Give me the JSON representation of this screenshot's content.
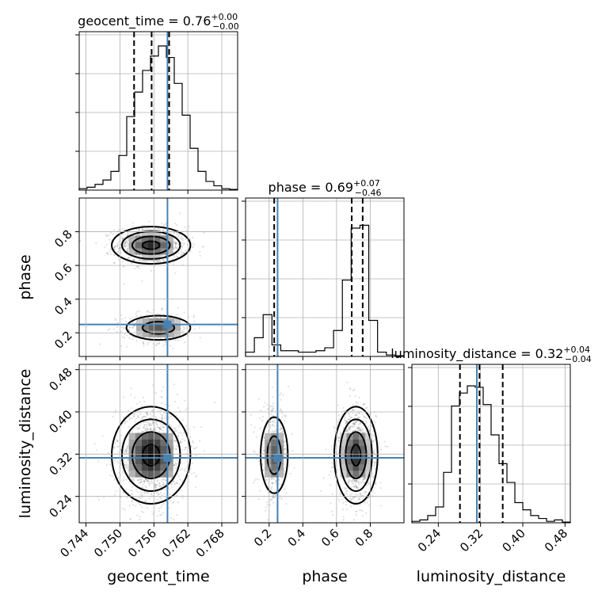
{
  "chart_data": {
    "type": "corner",
    "parameters": [
      {
        "key": "geocent_time",
        "label": "geocent_time",
        "title": {
          "prefix": "geocent_time = ",
          "value": "0.76",
          "sup": "+0.00",
          "sub": "−0.00"
        },
        "range": [
          0.7428,
          0.7708
        ],
        "ticks": [
          0.744,
          0.75,
          0.756,
          0.762,
          0.768
        ],
        "tick_labels": [
          "0.744",
          "0.750",
          "0.756",
          "0.762",
          "0.768"
        ],
        "quantiles": [
          0.7525,
          0.7556,
          0.7587
        ],
        "truth": 0.7584,
        "hist_rel": [
          0.01,
          0.02,
          0.04,
          0.07,
          0.13,
          0.24,
          0.51,
          0.68,
          0.83,
          0.93,
          1.0,
          0.92,
          0.74,
          0.52,
          0.29,
          0.13,
          0.06,
          0.03,
          0.01,
          0.005
        ]
      },
      {
        "key": "phase",
        "label": "phase",
        "title": {
          "prefix": "phase = ",
          "value": "0.69",
          "sup": "+0.07",
          "sub": "−0.46"
        },
        "range": [
          0.06,
          1.0
        ],
        "ticks": [
          0.2,
          0.4,
          0.6,
          0.8
        ],
        "tick_labels": [
          "0.2",
          "0.4",
          "0.6",
          "0.8"
        ],
        "quantiles": [
          0.23,
          0.69,
          0.755
        ],
        "truth": 0.25,
        "hist_rel": [
          0.03,
          0.13,
          0.29,
          0.08,
          0.04,
          0.04,
          0.03,
          0.03,
          0.04,
          0.06,
          0.18,
          0.53,
          0.89,
          0.91,
          0.25,
          0.03,
          0.01,
          0.005
        ]
      },
      {
        "key": "luminosity_distance",
        "label": "luminosity_distance",
        "title": {
          "prefix": "luminosity_distance = ",
          "value": "0.32",
          "sup": "+0.04",
          "sub": "−0.04"
        },
        "range": [
          0.19,
          0.49
        ],
        "ticks": [
          0.24,
          0.32,
          0.4,
          0.48
        ],
        "tick_labels": [
          "0.24",
          "0.32",
          "0.40",
          "0.48"
        ],
        "quantiles": [
          0.281,
          0.318,
          0.362
        ],
        "truth": 0.313,
        "hist_rel": [
          0.01,
          0.02,
          0.05,
          0.11,
          0.35,
          0.81,
          0.9,
          0.95,
          0.94,
          0.82,
          0.61,
          0.41,
          0.28,
          0.14,
          0.09,
          0.05,
          0.03,
          0.01,
          0.02,
          0.005
        ]
      }
    ],
    "pairs": [
      {
        "x": "geocent_time",
        "y": "phase",
        "clusters": [
          {
            "cx": 0.7555,
            "cy": 0.72,
            "sx": 0.0027,
            "sy": 0.048,
            "weight": 0.7
          },
          {
            "cx": 0.7568,
            "cy": 0.23,
            "sx": 0.0028,
            "sy": 0.04,
            "weight": 0.3
          }
        ]
      },
      {
        "x": "geocent_time",
        "y": "luminosity_distance",
        "clusters": [
          {
            "cx": 0.7555,
            "cy": 0.318,
            "sx": 0.0027,
            "sy": 0.04,
            "weight": 1.0
          }
        ]
      },
      {
        "x": "phase",
        "y": "luminosity_distance",
        "clusters": [
          {
            "cx": 0.23,
            "cy": 0.318,
            "sx": 0.04,
            "sy": 0.04,
            "weight": 0.3
          },
          {
            "cx": 0.715,
            "cy": 0.318,
            "sx": 0.05,
            "sy": 0.04,
            "weight": 0.7
          }
        ]
      }
    ],
    "colors": {
      "truth": "#4682b4",
      "line": "#000000",
      "grid": "#b0b0b0"
    }
  }
}
